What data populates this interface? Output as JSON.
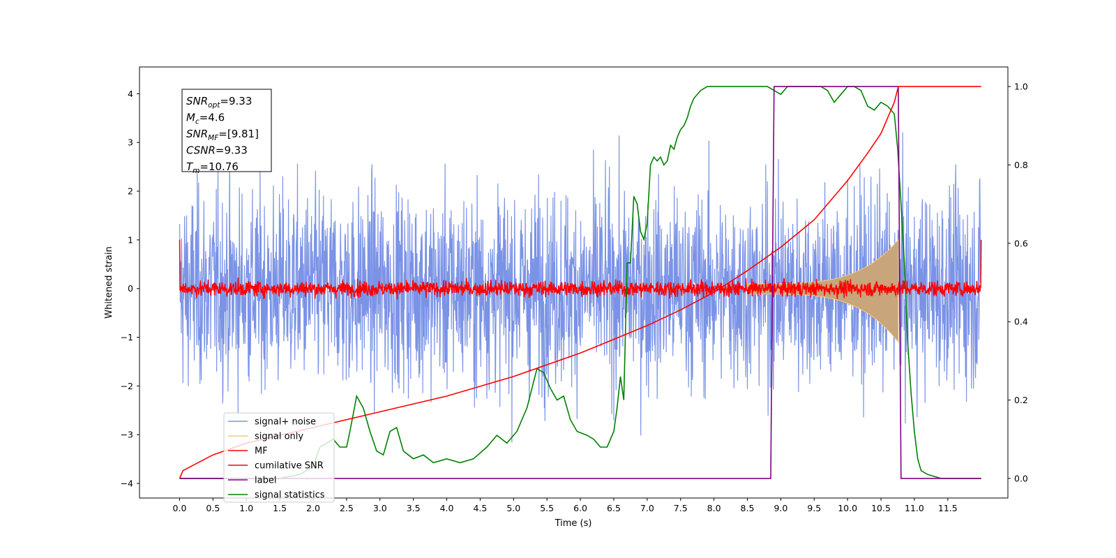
{
  "chart_data": {
    "type": "line",
    "xlabel": "Time (s)",
    "ylabel": "Whitened strain",
    "xlim": [
      -0.6,
      12.4
    ],
    "ylim": [
      -4.3,
      4.55
    ],
    "ylim_right": [
      -0.05,
      1.05
    ],
    "x_ticks": [
      "0.0",
      "0.5",
      "1.0",
      "1.5",
      "2.0",
      "2.5",
      "3.0",
      "3.5",
      "4.0",
      "4.5",
      "5.0",
      "5.5",
      "6.0",
      "6.5",
      "7.0",
      "7.5",
      "8.0",
      "8.5",
      "9.0",
      "9.5",
      "10.0",
      "10.5",
      "11.0",
      "11.5"
    ],
    "y_ticks_left": [
      "−4",
      "−3",
      "−2",
      "−1",
      "0",
      "1",
      "2",
      "3",
      "4"
    ],
    "y_ticks_right": [
      "0.0",
      "0.2",
      "0.4",
      "0.6",
      "0.8",
      "1.0"
    ],
    "grid": false,
    "legend_position": "bottom-left",
    "info_box": {
      "lines": [
        {
          "sym": "SNR",
          "sub": "opt",
          "val": "=9.33"
        },
        {
          "sym": "M",
          "sub": "c",
          "val": "=4.6"
        },
        {
          "sym": "SNR",
          "sub": "MF",
          "val": "=[9.81]"
        },
        {
          "sym": "CSNR",
          "sub": "",
          "val": "=9.33"
        },
        {
          "sym": "T",
          "sub": "m",
          "val": "=10.76"
        }
      ]
    },
    "series": [
      {
        "name": "signal+ noise",
        "color": "#7b93e6",
        "axis": "left",
        "kind": "noise",
        "time_range": [
          0,
          12.0
        ],
        "approx_std": 1.0,
        "approx_extremes": [
          -3.85,
          4.18
        ]
      },
      {
        "name": "signal only",
        "color": "#f5c97a",
        "axis": "left",
        "kind": "chirp",
        "time_range": [
          8.5,
          10.76
        ],
        "peak_amplitude": 1.0
      },
      {
        "name": "MF",
        "color": "#ff0000",
        "axis": "left",
        "kind": "noise",
        "time_range": [
          0,
          12.0
        ],
        "approx_std": 0.08,
        "edge_value": 1.0
      },
      {
        "name": "cumilative SNR",
        "color": "#ff0000",
        "axis": "right",
        "x": [
          0,
          0.05,
          0.5,
          1.0,
          2.0,
          3.0,
          4.0,
          5.0,
          6.0,
          6.5,
          7.0,
          7.5,
          8.0,
          8.5,
          9.0,
          9.5,
          10.0,
          10.3,
          10.5,
          10.7,
          10.76,
          12.0
        ],
        "y": [
          0.0,
          0.02,
          0.06,
          0.09,
          0.13,
          0.17,
          0.21,
          0.26,
          0.32,
          0.355,
          0.39,
          0.43,
          0.475,
          0.53,
          0.59,
          0.66,
          0.76,
          0.83,
          0.88,
          0.96,
          1.0,
          1.0
        ]
      },
      {
        "name": "label",
        "color": "#800080",
        "axis": "right",
        "x": [
          0,
          8.85,
          8.9,
          10.76,
          10.8,
          12.0
        ],
        "y": [
          0,
          0,
          1,
          1,
          0,
          0
        ]
      },
      {
        "name": "signal statistics",
        "color": "#008000",
        "axis": "right",
        "x": [
          0,
          0.5,
          1.0,
          1.5,
          1.8,
          2.0,
          2.1,
          2.2,
          2.3,
          2.4,
          2.5,
          2.55,
          2.65,
          2.75,
          2.85,
          2.95,
          3.05,
          3.15,
          3.25,
          3.35,
          3.5,
          3.65,
          3.8,
          4.0,
          4.2,
          4.4,
          4.6,
          4.75,
          4.9,
          5.05,
          5.2,
          5.35,
          5.45,
          5.55,
          5.65,
          5.75,
          5.85,
          5.95,
          6.1,
          6.2,
          6.3,
          6.4,
          6.5,
          6.55,
          6.6,
          6.65,
          6.7,
          6.75,
          6.8,
          6.85,
          6.9,
          6.95,
          7.0,
          7.05,
          7.1,
          7.15,
          7.2,
          7.25,
          7.3,
          7.35,
          7.4,
          7.45,
          7.5,
          7.55,
          7.6,
          7.65,
          7.7,
          7.8,
          7.9,
          8.0,
          8.1,
          8.2,
          8.4,
          8.6,
          8.8,
          8.9,
          9.0,
          9.1,
          9.2,
          9.3,
          9.4,
          9.5,
          9.6,
          9.7,
          9.8,
          9.9,
          10.0,
          10.1,
          10.2,
          10.3,
          10.4,
          10.5,
          10.6,
          10.7,
          10.75,
          10.8,
          10.85,
          10.9,
          10.95,
          11.0,
          11.05,
          11.1,
          11.2,
          11.4,
          11.6,
          12.0
        ],
        "y": [
          0.0,
          0.0,
          0.0,
          0.0,
          0.01,
          0.03,
          0.08,
          0.09,
          0.1,
          0.08,
          0.08,
          0.12,
          0.21,
          0.18,
          0.12,
          0.07,
          0.06,
          0.12,
          0.13,
          0.07,
          0.05,
          0.06,
          0.04,
          0.05,
          0.04,
          0.05,
          0.08,
          0.11,
          0.09,
          0.12,
          0.18,
          0.28,
          0.27,
          0.23,
          0.2,
          0.21,
          0.15,
          0.12,
          0.11,
          0.1,
          0.08,
          0.08,
          0.12,
          0.18,
          0.26,
          0.2,
          0.55,
          0.55,
          0.72,
          0.7,
          0.63,
          0.61,
          0.65,
          0.8,
          0.82,
          0.81,
          0.82,
          0.8,
          0.81,
          0.85,
          0.84,
          0.87,
          0.89,
          0.9,
          0.92,
          0.95,
          0.97,
          0.99,
          1.0,
          1.0,
          1.0,
          1.0,
          1.0,
          1.0,
          1.0,
          0.99,
          0.98,
          1.0,
          1.0,
          1.0,
          1.0,
          1.0,
          1.0,
          0.99,
          0.96,
          0.98,
          1.0,
          1.0,
          0.99,
          0.95,
          0.94,
          0.96,
          0.95,
          0.93,
          0.84,
          0.7,
          0.55,
          0.35,
          0.22,
          0.12,
          0.05,
          0.02,
          0.01,
          0.0,
          0.0,
          0.0
        ]
      }
    ]
  }
}
